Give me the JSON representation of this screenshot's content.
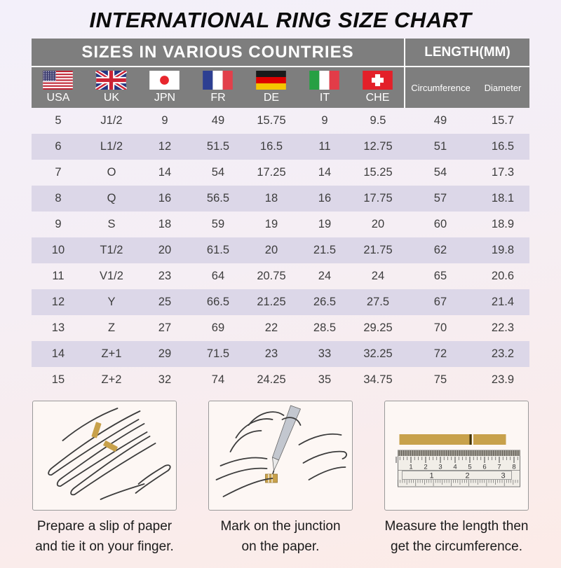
{
  "title": "INTERNATIONAL RING SIZE CHART",
  "table": {
    "group_headers": {
      "sizes": "SIZES IN VARIOUS COUNTRIES",
      "length": "LENGTH(MM)"
    },
    "countries": [
      {
        "code": "USA",
        "flag_icon": "usa-flag"
      },
      {
        "code": "UK",
        "flag_icon": "uk-flag"
      },
      {
        "code": "JPN",
        "flag_icon": "japan-flag"
      },
      {
        "code": "FR",
        "flag_icon": "france-flag"
      },
      {
        "code": "DE",
        "flag_icon": "germany-flag"
      },
      {
        "code": "IT",
        "flag_icon": "italy-flag"
      },
      {
        "code": "CHE",
        "flag_icon": "switzerland-flag"
      }
    ],
    "length_headers": [
      "Circumference",
      "Diameter"
    ],
    "columns": [
      "USA",
      "UK",
      "JPN",
      "FR",
      "DE",
      "IT",
      "CHE",
      "Circumference",
      "Diameter"
    ],
    "rows": [
      [
        "5",
        "J1/2",
        "9",
        "49",
        "15.75",
        "9",
        "9.5",
        "49",
        "15.7"
      ],
      [
        "6",
        "L1/2",
        "12",
        "51.5",
        "16.5",
        "11",
        "12.75",
        "51",
        "16.5"
      ],
      [
        "7",
        "O",
        "14",
        "54",
        "17.25",
        "14",
        "15.25",
        "54",
        "17.3"
      ],
      [
        "8",
        "Q",
        "16",
        "56.5",
        "18",
        "16",
        "17.75",
        "57",
        "18.1"
      ],
      [
        "9",
        "S",
        "18",
        "59",
        "19",
        "19",
        "20",
        "60",
        "18.9"
      ],
      [
        "10",
        "T1/2",
        "20",
        "61.5",
        "20",
        "21.5",
        "21.75",
        "62",
        "19.8"
      ],
      [
        "11",
        "V1/2",
        "23",
        "64",
        "20.75",
        "24",
        "24",
        "65",
        "20.6"
      ],
      [
        "12",
        "Y",
        "25",
        "66.5",
        "21.25",
        "26.5",
        "27.5",
        "67",
        "21.4"
      ],
      [
        "13",
        "Z",
        "27",
        "69",
        "22",
        "28.5",
        "29.25",
        "70",
        "22.3"
      ],
      [
        "14",
        "Z+1",
        "29",
        "71.5",
        "23",
        "33",
        "32.25",
        "72",
        "23.2"
      ],
      [
        "15",
        "Z+2",
        "32",
        "74",
        "24.25",
        "35",
        "34.75",
        "75",
        "23.9"
      ]
    ]
  },
  "steps": [
    {
      "illustration": "hand-with-paper-strip",
      "caption_line1": "Prepare a slip of paper",
      "caption_line2": "and tie it on your finger."
    },
    {
      "illustration": "mark-junction-with-pen",
      "caption_line1": "Mark on the junction",
      "caption_line2": "on the paper."
    },
    {
      "illustration": "ruler-measuring-strip",
      "caption_line1": "Measure the length then",
      "caption_line2": "get the circumference."
    }
  ],
  "ruler": {
    "top_scale": [
      "1",
      "2",
      "3",
      "4",
      "5",
      "6",
      "7",
      "8"
    ],
    "bottom_scale": [
      "1",
      "2",
      "3"
    ]
  },
  "colors": {
    "header_bg": "#7e7e7e",
    "header_text": "#ffffff",
    "row_alt_bg": "#dcd7e8",
    "paper_strip_gold": "#c8a14b",
    "title_text": "#0c0c0c"
  }
}
